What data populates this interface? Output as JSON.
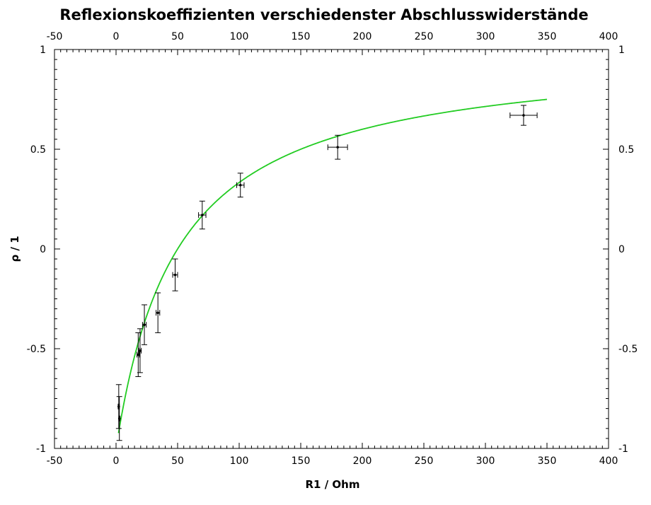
{
  "chart_data": {
    "type": "scatter",
    "title": "Reflexionskoeffizienten verschiedenster Abschlusswiderstände",
    "xlabel": "R1 / Ohm",
    "ylabel": "ρ / 1",
    "xlim": [
      -50,
      400
    ],
    "ylim": [
      -1,
      1
    ],
    "x_ticks": [
      -50,
      0,
      50,
      100,
      150,
      200,
      250,
      300,
      350,
      400
    ],
    "y_ticks": [
      -1,
      -0.5,
      0,
      0.5,
      1
    ],
    "x_tick_labels": [
      "-50",
      "0",
      "50",
      "100",
      "150",
      "200",
      "250",
      "300",
      "350",
      "400"
    ],
    "y_tick_labels": [
      "-1",
      "-0.5",
      "0",
      "0.5",
      "1"
    ],
    "grid": false,
    "mirror_axes": true,
    "points": [
      {
        "x": 2.2,
        "y": -0.79,
        "xerr": 0.5,
        "yerr": 0.11
      },
      {
        "x": 2.7,
        "y": -0.85,
        "xerr": 0.5,
        "yerr": 0.11
      },
      {
        "x": 18,
        "y": -0.53,
        "xerr": 1,
        "yerr": 0.11
      },
      {
        "x": 19.5,
        "y": -0.51,
        "xerr": 1,
        "yerr": 0.11
      },
      {
        "x": 23,
        "y": -0.38,
        "xerr": 1.5,
        "yerr": 0.1
      },
      {
        "x": 34,
        "y": -0.32,
        "xerr": 1.5,
        "yerr": 0.1
      },
      {
        "x": 48,
        "y": -0.13,
        "xerr": 2,
        "yerr": 0.08
      },
      {
        "x": 70,
        "y": 0.17,
        "xerr": 3,
        "yerr": 0.07
      },
      {
        "x": 101,
        "y": 0.32,
        "xerr": 3,
        "yerr": 0.06
      },
      {
        "x": 180,
        "y": 0.51,
        "xerr": 8,
        "yerr": 0.06
      },
      {
        "x": 331,
        "y": 0.67,
        "xerr": 11,
        "yerr": 0.05
      }
    ],
    "fit_curve": {
      "color": "#22cc22",
      "formula": "(R - 50) / (R + 50)",
      "x_range": [
        2,
        350
      ]
    },
    "point_color": "#000000"
  }
}
